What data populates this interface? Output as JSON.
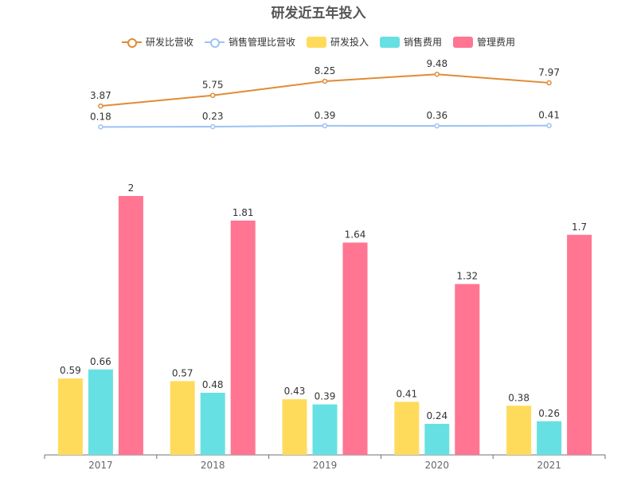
{
  "title": "研发近五年投入",
  "chart_data": {
    "type": "bar",
    "title": "研发近五年投入",
    "categories": [
      "2017",
      "2018",
      "2019",
      "2020",
      "2021"
    ],
    "bar_series": [
      {
        "name": "研发投入",
        "color": "#FFDB5C",
        "values": [
          0.59,
          0.57,
          0.43,
          0.41,
          0.38
        ]
      },
      {
        "name": "销售费用",
        "color": "#67E0E3",
        "values": [
          0.66,
          0.48,
          0.39,
          0.24,
          0.26
        ]
      },
      {
        "name": "管理费用",
        "color": "#FF7592",
        "values": [
          2,
          1.81,
          1.64,
          1.32,
          1.7
        ]
      }
    ],
    "line_series": [
      {
        "name": "研发比营收",
        "color": "#E08B35",
        "values": [
          3.87,
          5.75,
          8.25,
          9.48,
          7.97
        ]
      },
      {
        "name": "销售管理比营收",
        "color": "#9CC3F5",
        "values": [
          0.18,
          0.23,
          0.39,
          0.36,
          0.41
        ]
      }
    ],
    "legend_position": "top-center",
    "grid": false
  }
}
